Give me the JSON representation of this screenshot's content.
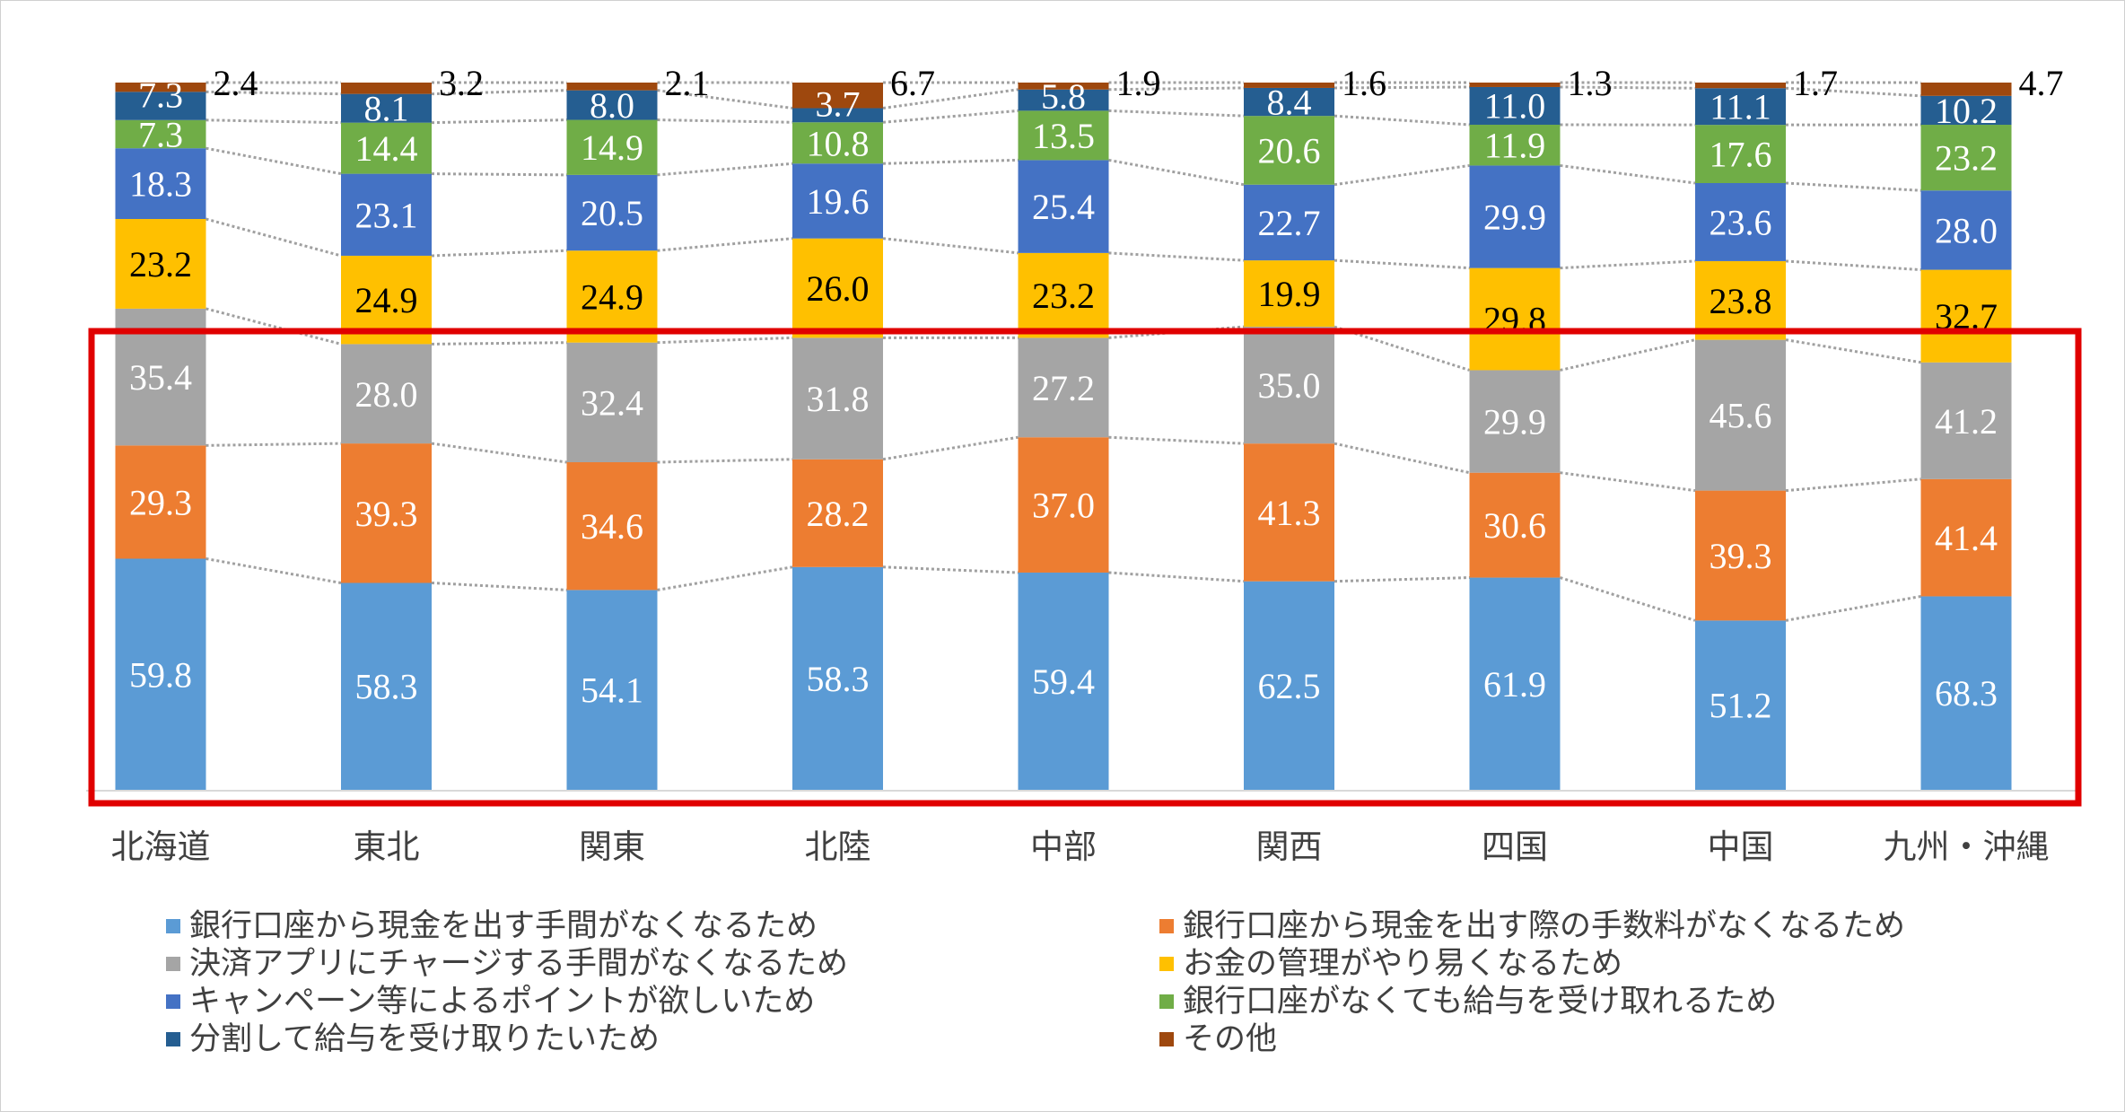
{
  "chart_data": {
    "type": "bar",
    "stacked": "100%",
    "categories": [
      "北海道",
      "東北",
      "関東",
      "北陸",
      "中部",
      "関西",
      "四国",
      "中国",
      "九州・沖縄"
    ],
    "series": [
      {
        "name": "銀行口座から現金を出す手間がなくなるため",
        "color": "#5B9BD5",
        "label_color": "#ffffff",
        "values": [
          59.8,
          58.3,
          54.1,
          58.3,
          59.4,
          62.5,
          61.9,
          51.2,
          68.3
        ]
      },
      {
        "name": "銀行口座から現金を出す際の手数料がなくなるため",
        "color": "#ED7D31",
        "label_color": "#ffffff",
        "values": [
          29.3,
          39.3,
          34.6,
          28.2,
          37.0,
          41.3,
          30.6,
          39.3,
          41.4
        ]
      },
      {
        "name": "決済アプリにチャージする手間がなくなるため",
        "color": "#A5A5A5",
        "label_color": "#ffffff",
        "values": [
          35.4,
          28.0,
          32.4,
          31.8,
          27.2,
          35.0,
          29.9,
          45.6,
          41.2
        ]
      },
      {
        "name": "お金の管理がやり易くなるため",
        "color": "#FFC000",
        "label_color": "#000000",
        "values": [
          23.2,
          24.9,
          24.9,
          26.0,
          23.2,
          19.9,
          29.8,
          23.8,
          32.7
        ]
      },
      {
        "name": "キャンペーン等によるポイントが欲しいため",
        "color": "#4472C4",
        "label_color": "#ffffff",
        "values": [
          18.3,
          23.1,
          20.5,
          19.6,
          25.4,
          22.7,
          29.9,
          23.6,
          28.0
        ]
      },
      {
        "name": "銀行口座がなくても給与を受け取れるため",
        "color": "#70AD47",
        "label_color": "#ffffff",
        "values": [
          7.3,
          14.4,
          14.9,
          10.8,
          13.5,
          20.6,
          11.9,
          17.6,
          23.2
        ]
      },
      {
        "name": "分割して給与を受け取りたいため",
        "color": "#255E91",
        "label_color": "#ffffff",
        "values": [
          7.3,
          8.1,
          8.0,
          3.7,
          5.8,
          8.4,
          11.0,
          11.1,
          10.2
        ]
      },
      {
        "name": "その他",
        "color": "#9E480E",
        "label_color": "#000000",
        "label_outside": true,
        "values": [
          2.4,
          3.2,
          2.1,
          6.7,
          1.9,
          1.6,
          1.3,
          1.7,
          4.7
        ]
      }
    ],
    "legend_position": "bottom",
    "series_lines": true,
    "grid": false,
    "highlight_color": "#E00000"
  }
}
